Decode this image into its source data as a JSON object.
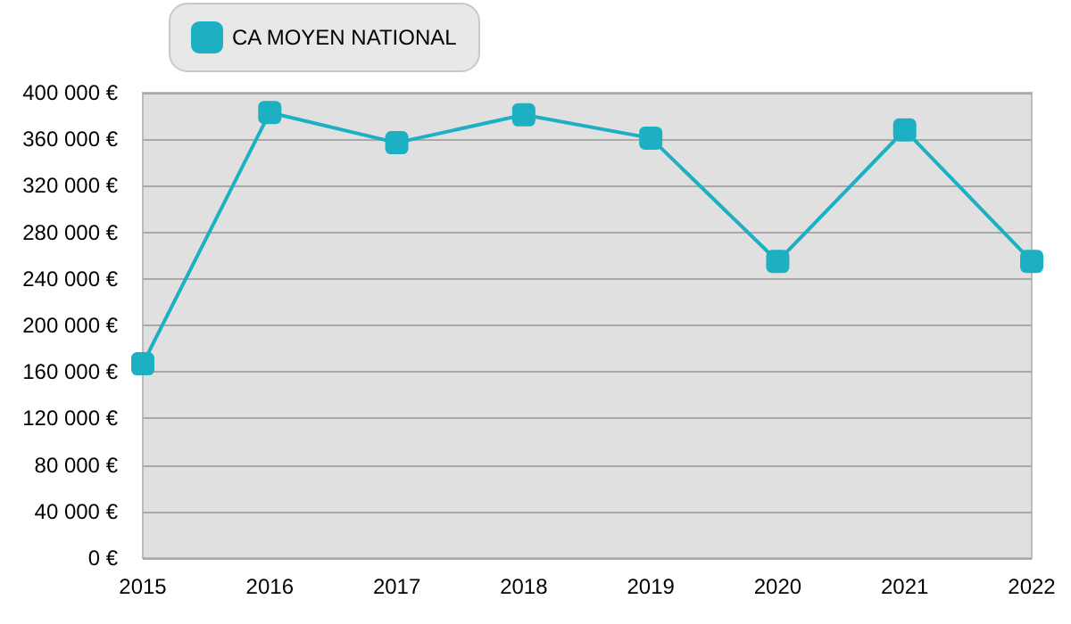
{
  "chart_data": {
    "type": "line",
    "categories": [
      "2015",
      "2016",
      "2017",
      "2018",
      "2019",
      "2020",
      "2021",
      "2022"
    ],
    "series": [
      {
        "name": "CA MOYEN NATIONAL",
        "color": "#1cb0c2",
        "values": [
          167000,
          383000,
          357000,
          381000,
          361000,
          255000,
          368000,
          255000
        ]
      }
    ],
    "ylim": [
      0,
      400000
    ],
    "yticks": [
      {
        "value": 0,
        "label": "0 €"
      },
      {
        "value": 40000,
        "label": "40 000 €"
      },
      {
        "value": 80000,
        "label": "80 000 €"
      },
      {
        "value": 120000,
        "label": "120 000 €"
      },
      {
        "value": 160000,
        "label": "160 000 €"
      },
      {
        "value": 200000,
        "label": "200 000 €"
      },
      {
        "value": 240000,
        "label": "240 000 €"
      },
      {
        "value": 280000,
        "label": "280 000 €"
      },
      {
        "value": 320000,
        "label": "320 000 €"
      },
      {
        "value": 360000,
        "label": "360 000 €"
      },
      {
        "value": 400000,
        "label": "400 000 €"
      }
    ],
    "grid": "y",
    "legend": "top left",
    "marker": "square",
    "line_style": "solid"
  }
}
